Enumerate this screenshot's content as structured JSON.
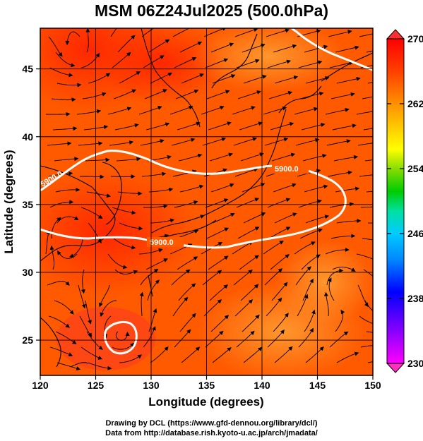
{
  "title": "MSM 06Z24Jul2025 (500.0hPa)",
  "credits": {
    "line1": "Drawing by DCL (https://www.gfd-dennou.org/library/dcl/)",
    "line2": "Data from http://database.rish.kyoto-u.ac.jp/arch/jmadata/"
  },
  "chart_data": {
    "type": "heatmap",
    "xlabel": "Longitude (degrees)",
    "ylabel": "Latitude  (degrees)",
    "xlim": [
      120,
      150
    ],
    "ylim": [
      22.4,
      48
    ],
    "x_ticks": [
      "120",
      "125",
      "130",
      "135",
      "140",
      "145",
      "150"
    ],
    "y_ticks": [
      "25",
      "30",
      "35",
      "40",
      "45"
    ],
    "grid": true,
    "colorbar": {
      "range": [
        230,
        270
      ],
      "tick_labels": [
        "270",
        "262",
        "254",
        "246",
        "238",
        "230"
      ],
      "colors": [
        "#ff00ff",
        "#8800ff",
        "#0000ff",
        "#0088ff",
        "#00ccff",
        "#00e0a0",
        "#00cc00",
        "#88dd00",
        "#ffff00",
        "#ffc000",
        "#ff8000",
        "#ff4000",
        "#ff0000"
      ]
    },
    "contour": {
      "label": "5900.0",
      "color": "#ffffff"
    },
    "overlays": [
      "streamlines",
      "coastlines"
    ],
    "field_colors": {
      "dominant": "#ff5a00",
      "warm_core": "#ff2a00",
      "cooler": "#ff8a20"
    }
  }
}
